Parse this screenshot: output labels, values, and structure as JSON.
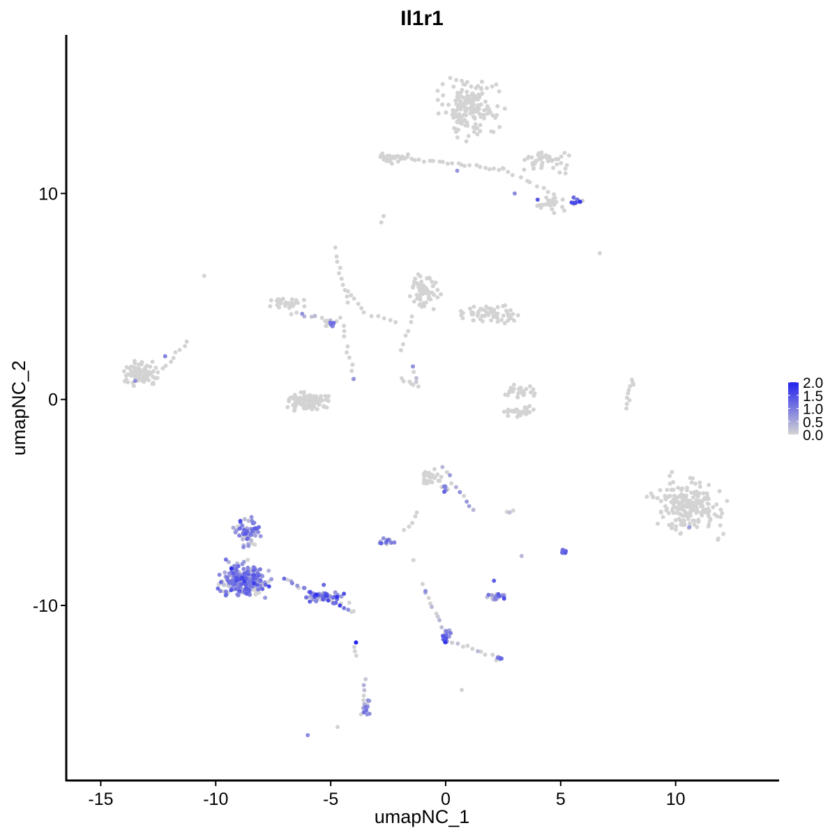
{
  "chart_data": {
    "type": "scatter",
    "title": "Il1r1",
    "xlabel": "umapNC_1",
    "ylabel": "umapNC_2",
    "xlim": [
      -16.5,
      14.5
    ],
    "ylim": [
      -18.5,
      17.7
    ],
    "xticks": [
      -15,
      -10,
      -5,
      0,
      5,
      10
    ],
    "xtick_labels": [
      "-15",
      "-10",
      "-5",
      "0",
      "5",
      "10"
    ],
    "yticks": [
      -10,
      0,
      10
    ],
    "ytick_labels": [
      "-10",
      "0",
      "10"
    ],
    "legend": {
      "placement": "right",
      "ticks": [
        0.0,
        0.5,
        1.0,
        1.5,
        2.0
      ],
      "labels": [
        "0.0",
        "0.5",
        "1.0",
        "1.5",
        "2.0"
      ],
      "low_color": "#d3d3d3",
      "high_color": "#2222ee"
    },
    "clusters": [
      {
        "cx": 1.0,
        "cy": 14.2,
        "rx": 1.7,
        "ry": 1.7,
        "n": 170,
        "expr": 0.0
      },
      {
        "cx": 4.4,
        "cy": 11.6,
        "rx": 1.6,
        "ry": 0.7,
        "n": 45,
        "expr": 0.0
      },
      {
        "cx": -2.4,
        "cy": 11.7,
        "rx": 0.9,
        "ry": 0.4,
        "n": 30,
        "expr": 0.0
      },
      {
        "cx": 4.7,
        "cy": 9.5,
        "rx": 0.8,
        "ry": 0.6,
        "n": 22,
        "expr": 0.0
      },
      {
        "cx": 5.7,
        "cy": 9.6,
        "rx": 0.35,
        "ry": 0.3,
        "n": 14,
        "expr": 1.5
      },
      {
        "cx": -0.9,
        "cy": 5.2,
        "rx": 1.0,
        "ry": 1.1,
        "n": 60,
        "expr": 0.0
      },
      {
        "cx": 1.8,
        "cy": 4.1,
        "rx": 1.8,
        "ry": 0.6,
        "n": 60,
        "expr": 0.0
      },
      {
        "cx": -13.3,
        "cy": 1.2,
        "rx": 1.2,
        "ry": 0.8,
        "n": 90,
        "expr": 0.0
      },
      {
        "cx": -6.0,
        "cy": -0.1,
        "rx": 1.3,
        "ry": 0.6,
        "n": 90,
        "expr": 0.0
      },
      {
        "cx": -7.0,
        "cy": 4.7,
        "rx": 1.0,
        "ry": 0.5,
        "n": 30,
        "expr": 0.0
      },
      {
        "cx": -5.0,
        "cy": 3.7,
        "rx": 0.4,
        "ry": 0.25,
        "n": 12,
        "expr": 0.8
      },
      {
        "cx": 3.2,
        "cy": 0.4,
        "rx": 0.8,
        "ry": 0.4,
        "n": 30,
        "expr": 0.0
      },
      {
        "cx": 3.2,
        "cy": -0.6,
        "rx": 1.0,
        "ry": 0.3,
        "n": 30,
        "expr": 0.0
      },
      {
        "cx": 10.6,
        "cy": -5.2,
        "rx": 2.0,
        "ry": 1.8,
        "n": 200,
        "expr": 0.0
      },
      {
        "cx": -0.5,
        "cy": -3.8,
        "rx": 0.9,
        "ry": 0.6,
        "n": 30,
        "expr": 0.0
      },
      {
        "cx": -0.1,
        "cy": -4.3,
        "rx": 0.35,
        "ry": 0.3,
        "n": 8,
        "expr": 0.9
      },
      {
        "cx": -8.8,
        "cy": -8.8,
        "rx": 1.4,
        "ry": 1.1,
        "n": 230,
        "expr": 0.9
      },
      {
        "cx": -8.6,
        "cy": -6.5,
        "rx": 0.8,
        "ry": 1.0,
        "n": 60,
        "expr": 0.8
      },
      {
        "cx": -5.3,
        "cy": -9.6,
        "rx": 1.2,
        "ry": 0.45,
        "n": 50,
        "expr": 1.0
      },
      {
        "cx": -2.5,
        "cy": -6.9,
        "rx": 0.4,
        "ry": 0.25,
        "n": 14,
        "expr": 0.8
      },
      {
        "cx": 2.2,
        "cy": -9.6,
        "rx": 0.6,
        "ry": 0.25,
        "n": 24,
        "expr": 0.8
      },
      {
        "cx": 0.0,
        "cy": -11.5,
        "rx": 0.25,
        "ry": 0.5,
        "n": 16,
        "expr": 1.2
      },
      {
        "cx": -3.4,
        "cy": -15.0,
        "rx": 0.25,
        "ry": 0.7,
        "n": 14,
        "expr": 0.6
      },
      {
        "cx": 5.1,
        "cy": -7.4,
        "rx": 0.25,
        "ry": 0.3,
        "n": 8,
        "expr": 1.0
      },
      {
        "cx": 2.3,
        "cy": -12.6,
        "rx": 0.25,
        "ry": 0.25,
        "n": 6,
        "expr": 0.9
      }
    ],
    "trails": [
      {
        "from": [
          -1.7,
          11.7
        ],
        "to": [
          2.5,
          11.2
        ],
        "n": 22,
        "expr": 0.0
      },
      {
        "from": [
          2.5,
          11.2
        ],
        "to": [
          4.7,
          10.0
        ],
        "n": 10,
        "expr": 0.0
      },
      {
        "from": [
          -4.8,
          7.3
        ],
        "to": [
          -4.3,
          4.7
        ],
        "n": 10,
        "expr": 0.0
      },
      {
        "from": [
          -4.2,
          5.3
        ],
        "to": [
          -3.6,
          4.2
        ],
        "n": 6,
        "expr": 0.0
      },
      {
        "from": [
          -4.5,
          4.0
        ],
        "to": [
          -4.0,
          1.0
        ],
        "n": 10,
        "expr": 0.0
      },
      {
        "from": [
          -6.7,
          4.2
        ],
        "to": [
          -4.8,
          3.8
        ],
        "n": 10,
        "expr": 0.2
      },
      {
        "from": [
          -12.3,
          1.5
        ],
        "to": [
          -11.3,
          2.8
        ],
        "n": 8,
        "expr": 0.0
      },
      {
        "from": [
          -2.0,
          1.0
        ],
        "to": [
          -1.2,
          0.7
        ],
        "n": 6,
        "expr": 0.0
      },
      {
        "from": [
          -3.2,
          4.1
        ],
        "to": [
          -2.2,
          3.8
        ],
        "n": 5,
        "expr": 0.0
      },
      {
        "from": [
          -1.9,
          2.4
        ],
        "to": [
          -1.5,
          4.0
        ],
        "n": 6,
        "expr": 0.0
      },
      {
        "from": [
          -1.4,
          1.6
        ],
        "to": [
          -1.3,
          0.8
        ],
        "n": 4,
        "expr": 0.5
      },
      {
        "from": [
          7.8,
          -0.4
        ],
        "to": [
          8.2,
          1.0
        ],
        "n": 10,
        "expr": 0.0
      },
      {
        "from": [
          -7.0,
          -8.7
        ],
        "to": [
          -4.0,
          -10.3
        ],
        "n": 24,
        "expr": 0.9
      },
      {
        "from": [
          -0.1,
          -3.3
        ],
        "to": [
          1.2,
          -5.4
        ],
        "n": 10,
        "expr": 0.4
      },
      {
        "from": [
          -1.8,
          -6.4
        ],
        "to": [
          -1.2,
          -5.5
        ],
        "n": 5,
        "expr": 0.0
      },
      {
        "from": [
          -1.0,
          -9.0
        ],
        "to": [
          -0.2,
          -11.0
        ],
        "n": 10,
        "expr": 0.3
      },
      {
        "from": [
          0.3,
          -11.8
        ],
        "to": [
          2.2,
          -12.5
        ],
        "n": 10,
        "expr": 0.3
      },
      {
        "from": [
          -3.5,
          -13.6
        ],
        "to": [
          -3.6,
          -15.3
        ],
        "n": 8,
        "expr": 0.3
      },
      {
        "from": [
          -4.0,
          -12.0
        ],
        "to": [
          -3.9,
          -12.5
        ],
        "n": 3,
        "expr": 0.4
      },
      {
        "from": [
          2.7,
          -5.5
        ],
        "to": [
          3.0,
          -5.4
        ],
        "n": 3,
        "expr": 0.6
      }
    ],
    "singles": [
      {
        "x": -10.5,
        "y": 6.0,
        "expr": 0.0
      },
      {
        "x": 6.7,
        "y": 7.1,
        "expr": 0.0
      },
      {
        "x": -2.7,
        "y": 8.9,
        "expr": 0.0
      },
      {
        "x": -2.8,
        "y": 8.6,
        "expr": 0.0
      },
      {
        "x": -3.9,
        "y": -11.8,
        "expr": 2.0
      },
      {
        "x": -4.7,
        "y": -15.9,
        "expr": 0.0
      },
      {
        "x": -6.0,
        "y": -16.3,
        "expr": 0.8
      },
      {
        "x": 0.7,
        "y": -14.1,
        "expr": 0.0
      },
      {
        "x": 3.3,
        "y": -7.6,
        "expr": 0.3
      },
      {
        "x": 2.1,
        "y": -8.8,
        "expr": 1.3
      },
      {
        "x": 0.5,
        "y": 11.1,
        "expr": 0.7
      },
      {
        "x": 3.0,
        "y": 10.0,
        "expr": 0.8
      },
      {
        "x": 4.0,
        "y": 9.7,
        "expr": 1.4
      },
      {
        "x": 10.6,
        "y": -6.2,
        "expr": 0.6
      },
      {
        "x": -13.5,
        "y": 0.9,
        "expr": 0.8
      },
      {
        "x": -12.2,
        "y": 2.1,
        "expr": 0.9
      },
      {
        "x": -4.0,
        "y": 1.0,
        "expr": 0.7
      },
      {
        "x": -1.4,
        "y": -7.8,
        "expr": 0.0
      },
      {
        "x": -5.3,
        "y": -9.0,
        "expr": 1.2
      }
    ]
  }
}
